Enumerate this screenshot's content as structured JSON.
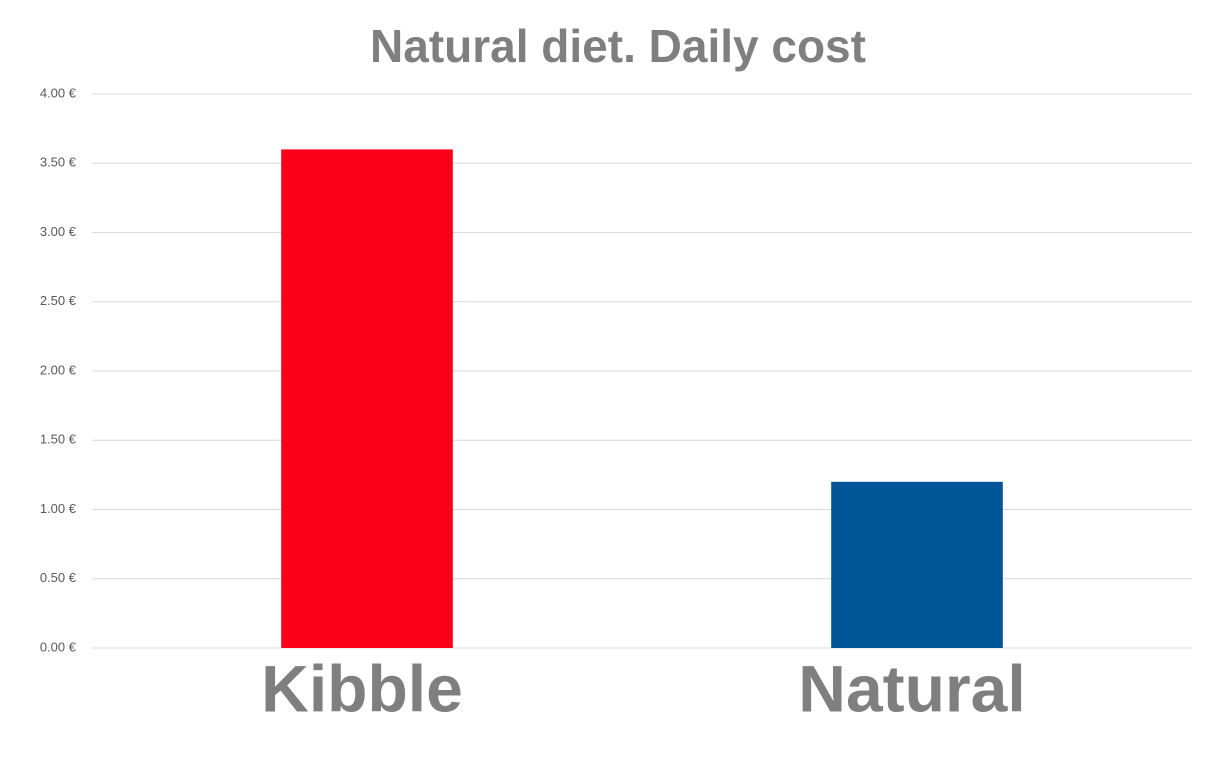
{
  "chart_data": {
    "type": "bar",
    "title": "Natural diet. Daily cost",
    "categories": [
      "Kibble",
      "Natural"
    ],
    "values": [
      3.6,
      1.2
    ],
    "colors": [
      "#fa0019",
      "#005596"
    ],
    "ylim": [
      0,
      4
    ],
    "yticks": [
      {
        "value": 0,
        "label": "0.00 €"
      },
      {
        "value": 0.5,
        "label": "0.50 €"
      },
      {
        "value": 1,
        "label": "1.00 €"
      },
      {
        "value": 1.5,
        "label": "1.50 €"
      },
      {
        "value": 2,
        "label": "2.00 €"
      },
      {
        "value": 2.5,
        "label": "2.50 €"
      },
      {
        "value": 3,
        "label": "3.00 €"
      },
      {
        "value": 3.5,
        "label": "3.50 €"
      },
      {
        "value": 4,
        "label": "4.00 €"
      }
    ],
    "grid": true
  }
}
